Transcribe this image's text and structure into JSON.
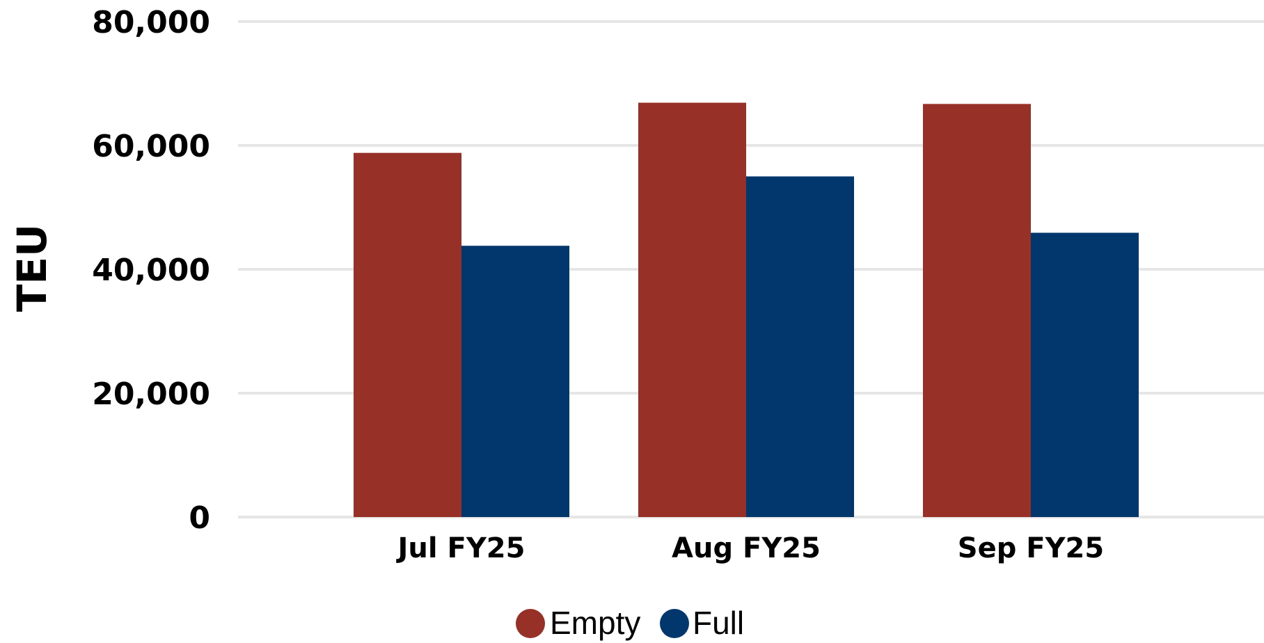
{
  "chart_data": {
    "type": "bar",
    "title": "",
    "xlabel": "",
    "ylabel": "TEU",
    "ylim": [
      0,
      80000
    ],
    "yticks": [
      0,
      20000,
      40000,
      60000,
      80000
    ],
    "ytick_labels": [
      "0",
      "20,000",
      "40,000",
      "60,000",
      "80,000"
    ],
    "categories": [
      "Jul FY25",
      "Aug FY25",
      "Sep FY25"
    ],
    "series": [
      {
        "name": "Empty",
        "values": [
          58800,
          66900,
          66700
        ],
        "color": "#973026"
      },
      {
        "name": "Full",
        "values": [
          43800,
          55000,
          45900
        ],
        "color": "#02376d"
      }
    ],
    "grid": true,
    "legend_position": "bottom-center"
  }
}
